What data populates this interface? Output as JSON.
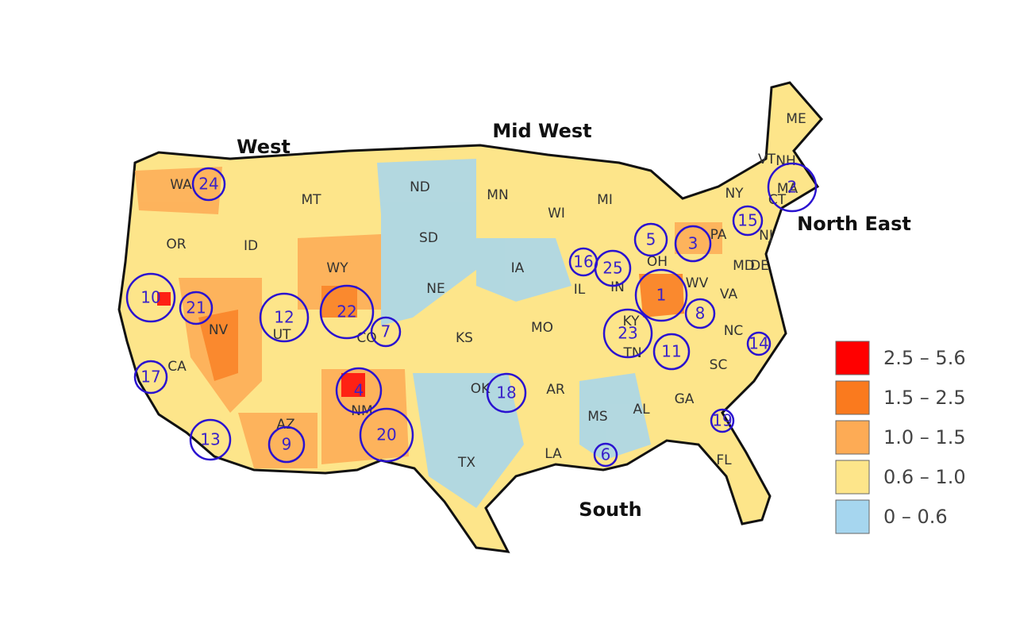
{
  "regions": [
    "West",
    "Mid West",
    "North East",
    "South"
  ],
  "states": [
    "WA",
    "OR",
    "CA",
    "ID",
    "NV",
    "MT",
    "WY",
    "UT",
    "AZ",
    "CO",
    "NM",
    "ND",
    "SD",
    "NE",
    "KS",
    "OK",
    "TX",
    "MN",
    "IA",
    "MO",
    "AR",
    "LA",
    "WI",
    "IL",
    "MI",
    "IN",
    "OH",
    "KY",
    "TN",
    "MS",
    "AL",
    "GA",
    "FL",
    "SC",
    "NC",
    "VA",
    "WV",
    "PA",
    "NY",
    "ME",
    "VT",
    "NH",
    "MA",
    "CT",
    "NJ",
    "DE",
    "MD"
  ],
  "clusters": [
    1,
    2,
    3,
    4,
    5,
    6,
    7,
    8,
    9,
    10,
    11,
    12,
    13,
    14,
    15,
    16,
    17,
    18,
    19,
    20,
    21,
    22,
    23,
    24,
    25
  ],
  "legend": [
    {
      "label": "2.5 – 5.6",
      "color": "#ff0000"
    },
    {
      "label": "1.5 – 2.5",
      "color": "#fa7a1e"
    },
    {
      "label": "1.0 – 1.5",
      "color": "#fdab55"
    },
    {
      "label": "0.6 – 1.0",
      "color": "#fde58a"
    },
    {
      "label": "0 – 0.6",
      "color": "#a6d6ef"
    }
  ]
}
